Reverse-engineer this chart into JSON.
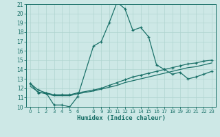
{
  "xlabel": "Humidex (Indice chaleur)",
  "xlim": [
    -0.5,
    23.5
  ],
  "ylim": [
    10,
    21
  ],
  "xticks": [
    0,
    1,
    2,
    3,
    4,
    5,
    6,
    8,
    9,
    10,
    11,
    12,
    13,
    14,
    15,
    16,
    17,
    18,
    19,
    20,
    21,
    22,
    23
  ],
  "yticks": [
    10,
    11,
    12,
    13,
    14,
    15,
    16,
    17,
    18,
    19,
    20,
    21
  ],
  "bg_color": "#cde8e6",
  "line_color": "#1a7068",
  "grid_color": "#b0d4d0",
  "line1_x": [
    0,
    1,
    2,
    3,
    4,
    5,
    6,
    8,
    9,
    10,
    11,
    12,
    13,
    14,
    15,
    16,
    17,
    18,
    19,
    20,
    21,
    22,
    23
  ],
  "line1_y": [
    12.5,
    11.5,
    11.5,
    10.2,
    10.2,
    10.0,
    11.1,
    16.5,
    17.0,
    19.0,
    21.2,
    20.5,
    18.2,
    18.5,
    17.5,
    14.5,
    14.0,
    13.5,
    13.7,
    13.0,
    13.2,
    13.5,
    13.8
  ],
  "line2_x": [
    0,
    1,
    2,
    3,
    4,
    5,
    6,
    8,
    9,
    10,
    11,
    12,
    13,
    14,
    15,
    16,
    17,
    18,
    19,
    20,
    21,
    22,
    23
  ],
  "line2_y": [
    12.5,
    11.8,
    11.5,
    11.3,
    11.3,
    11.3,
    11.5,
    11.8,
    12.0,
    12.3,
    12.6,
    12.9,
    13.2,
    13.4,
    13.6,
    13.8,
    14.0,
    14.2,
    14.4,
    14.6,
    14.7,
    14.9,
    15.0
  ],
  "line3_x": [
    0,
    1,
    2,
    3,
    4,
    5,
    6,
    8,
    9,
    10,
    11,
    12,
    13,
    14,
    15,
    16,
    17,
    18,
    19,
    20,
    21,
    22,
    23
  ],
  "line3_y": [
    12.2,
    11.6,
    11.4,
    11.2,
    11.2,
    11.2,
    11.4,
    11.7,
    11.9,
    12.1,
    12.3,
    12.6,
    12.8,
    13.0,
    13.2,
    13.4,
    13.6,
    13.8,
    14.0,
    14.2,
    14.3,
    14.5,
    14.7
  ]
}
